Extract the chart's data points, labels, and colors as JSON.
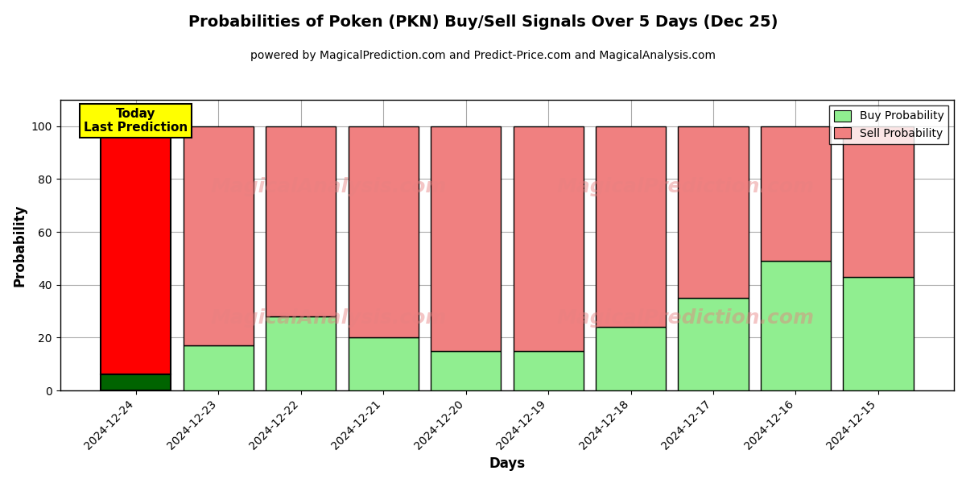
{
  "title": "Probabilities of Poken (PKN) Buy/Sell Signals Over 5 Days (Dec 25)",
  "subtitle": "powered by MagicalPrediction.com and Predict-Price.com and MagicalAnalysis.com",
  "xlabel": "Days",
  "ylabel": "Probability",
  "dates": [
    "2024-12-24",
    "2024-12-23",
    "2024-12-22",
    "2024-12-21",
    "2024-12-20",
    "2024-12-19",
    "2024-12-18",
    "2024-12-17",
    "2024-12-16",
    "2024-12-15"
  ],
  "buy_values": [
    6,
    17,
    28,
    20,
    15,
    15,
    24,
    35,
    49,
    43
  ],
  "sell_values": [
    94,
    83,
    72,
    80,
    85,
    85,
    76,
    65,
    51,
    57
  ],
  "today_buy_color": "#006400",
  "today_sell_color": "#FF0000",
  "buy_color": "#90EE90",
  "sell_color": "#F08080",
  "today_label": "Today\nLast Prediction",
  "legend_buy_label": "Buy Probability",
  "legend_sell_label": "Sell Probability",
  "ylim": [
    0,
    110
  ],
  "yticks": [
    0,
    20,
    40,
    60,
    80,
    100
  ],
  "dashed_line_y": 110,
  "background_color": "#ffffff",
  "grid_color": "#aaaaaa",
  "bar_width": 0.85
}
